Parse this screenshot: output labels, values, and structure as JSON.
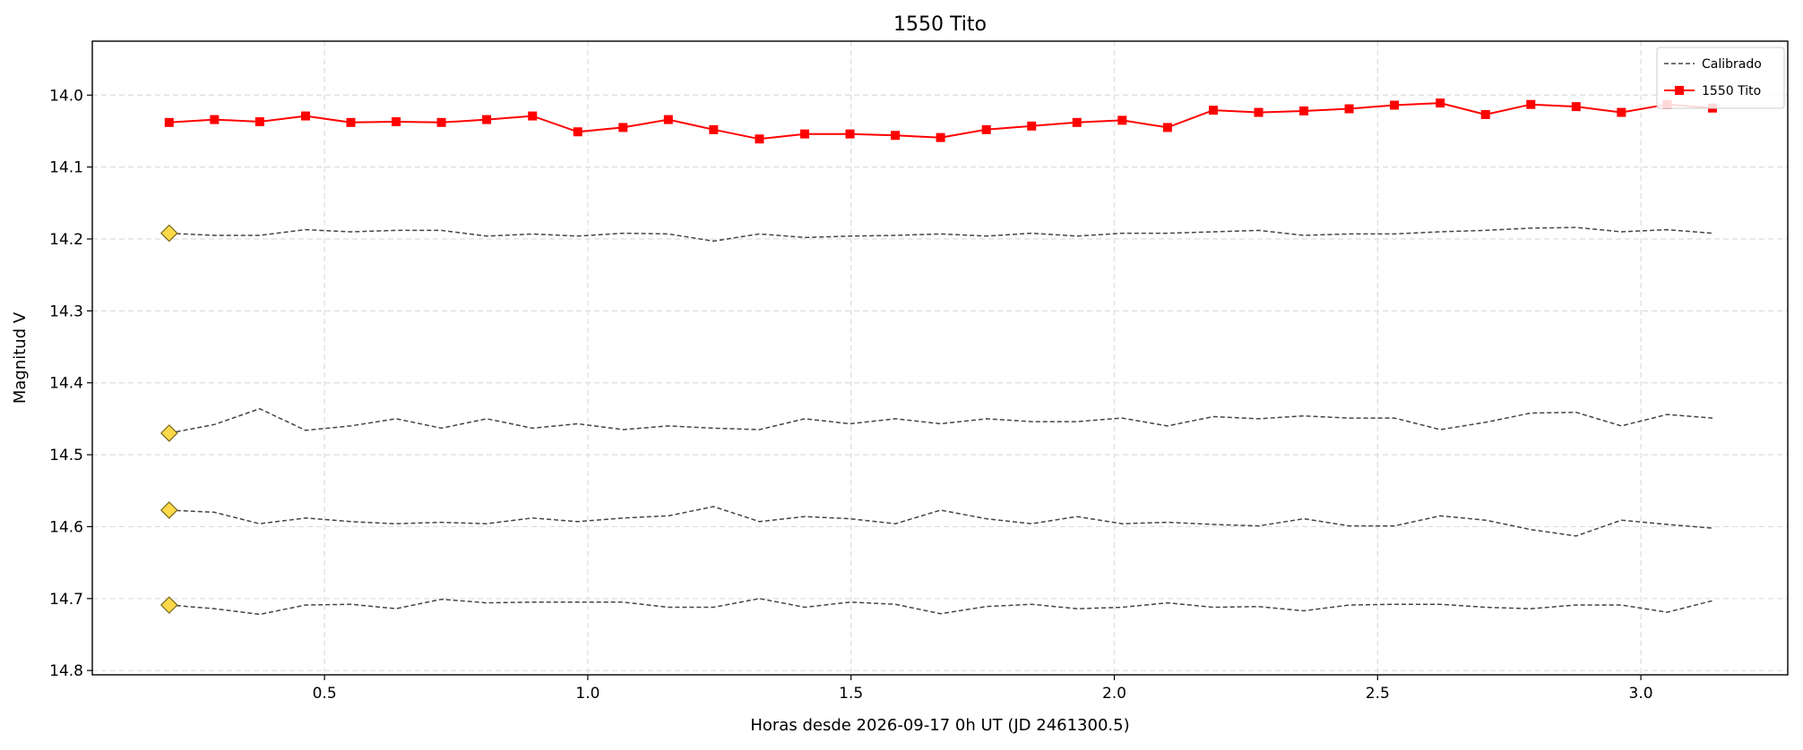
{
  "chart_data": {
    "type": "line",
    "title": "1550 Tito",
    "x_label": "Horas desde 2026-09-17 0h UT (JD 2461300.5)",
    "y_label": "Magnitud V",
    "xlim": [
      0.059,
      3.279
    ],
    "ylim": [
      13.925,
      14.806
    ],
    "y_inverted": true,
    "grid": true,
    "legend": "upper right",
    "xticks": [
      0.5,
      {
        "value": 1,
        "label": "1.0"
      },
      1.5,
      {
        "value": 2,
        "label": "2.0"
      },
      2.5,
      {
        "value": 3,
        "label": "3.0"
      }
    ],
    "yticks": [
      {
        "value": 14,
        "label": "14.0"
      },
      14.1,
      14.2,
      14.3,
      14.4,
      14.5,
      14.6,
      14.7,
      14.8
    ],
    "x": [
      0.205,
      0.291,
      0.377,
      0.464,
      0.55,
      0.636,
      0.722,
      0.808,
      0.895,
      0.981,
      1.067,
      1.153,
      1.239,
      1.326,
      1.412,
      1.498,
      1.584,
      1.67,
      1.757,
      1.843,
      1.929,
      2.015,
      2.101,
      2.188,
      2.274,
      2.36,
      2.446,
      2.532,
      2.619,
      2.705,
      2.791,
      2.877,
      2.963,
      3.05,
      3.136
    ],
    "series": [
      {
        "name": "Calibrado",
        "color": "#444444",
        "dashed": true,
        "first_marker": true,
        "values": [
          14.192,
          14.195,
          14.195,
          14.187,
          14.19,
          14.188,
          14.188,
          14.196,
          14.193,
          14.196,
          14.192,
          14.193,
          14.203,
          14.193,
          14.198,
          14.196,
          14.195,
          14.193,
          14.196,
          14.192,
          14.196,
          14.192,
          14.192,
          14.19,
          14.188,
          14.195,
          14.193,
          14.193,
          14.19,
          14.188,
          14.185,
          14.184,
          14.19,
          14.187,
          14.192
        ]
      },
      {
        "color": "#444444",
        "dashed": true,
        "first_marker": true,
        "values": [
          14.47,
          14.458,
          14.436,
          14.466,
          14.46,
          14.45,
          14.463,
          14.45,
          14.463,
          14.457,
          14.465,
          14.46,
          14.463,
          14.465,
          14.45,
          14.457,
          14.45,
          14.457,
          14.45,
          14.454,
          14.454,
          14.449,
          14.46,
          14.447,
          14.45,
          14.446,
          14.449,
          14.449,
          14.465,
          14.455,
          14.442,
          14.441,
          14.46,
          14.444,
          14.449
        ]
      },
      {
        "color": "#444444",
        "dashed": true,
        "first_marker": true,
        "values": [
          14.577,
          14.58,
          14.596,
          14.588,
          14.593,
          14.596,
          14.594,
          14.596,
          14.588,
          14.593,
          14.588,
          14.585,
          14.572,
          14.593,
          14.586,
          14.589,
          14.596,
          14.577,
          14.589,
          14.596,
          14.586,
          14.596,
          14.594,
          14.597,
          14.599,
          14.589,
          14.599,
          14.599,
          14.585,
          14.591,
          14.604,
          14.613,
          14.591,
          14.597,
          14.602
        ]
      },
      {
        "color": "#444444",
        "dashed": true,
        "first_marker": true,
        "values": [
          14.709,
          14.714,
          14.722,
          14.709,
          14.708,
          14.714,
          14.701,
          14.706,
          14.705,
          14.705,
          14.705,
          14.712,
          14.712,
          14.7,
          14.712,
          14.705,
          14.708,
          14.721,
          14.711,
          14.708,
          14.714,
          14.712,
          14.706,
          14.712,
          14.711,
          14.717,
          14.709,
          14.708,
          14.708,
          14.712,
          14.714,
          14.709,
          14.709,
          14.719,
          14.703
        ]
      },
      {
        "name": "1550 Tito",
        "color": "#ff0000",
        "marker": "square",
        "values": [
          14.038,
          14.034,
          14.037,
          14.029,
          14.038,
          14.037,
          14.038,
          14.034,
          14.029,
          14.051,
          14.045,
          14.034,
          14.048,
          14.061,
          14.054,
          14.054,
          14.056,
          14.059,
          14.048,
          14.043,
          14.038,
          14.035,
          14.045,
          14.021,
          14.024,
          14.022,
          14.019,
          14.014,
          14.011,
          14.027,
          14.013,
          14.016,
          14.024,
          14.013,
          14.018
        ]
      }
    ]
  }
}
